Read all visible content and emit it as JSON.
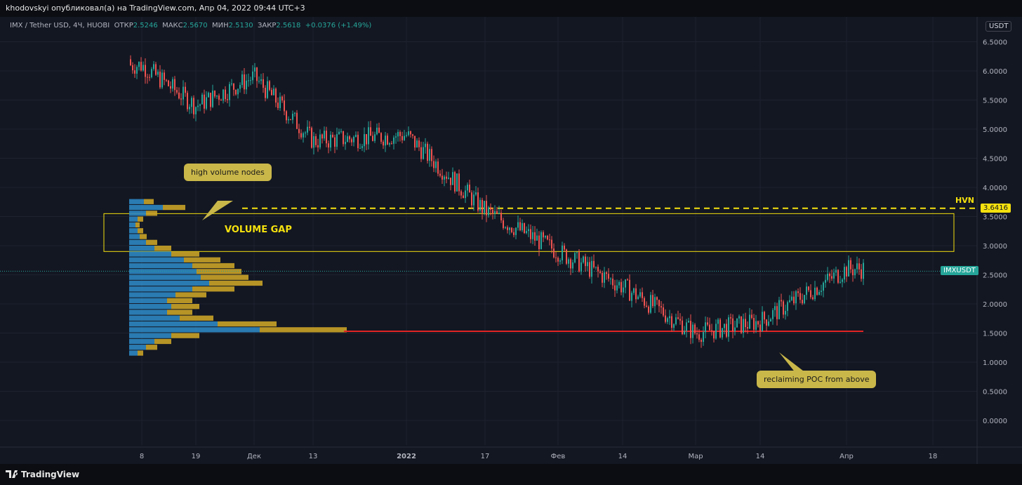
{
  "header": {
    "publish_line": "khodovskyi опубликовал(а) на TradingView.com, Апр 04, 2022 09:44 UTC+3"
  },
  "legend": {
    "symbol": "IMX / Tether USD, 4Ч, HUOBI",
    "open_label": "ОТКР",
    "open": "2.5246",
    "high_label": "МАКС",
    "high": "2.5670",
    "low_label": "МИН",
    "low": "2.5130",
    "close_label": "ЗАКР",
    "close": "2.5618",
    "change": "+0.0376 (+1.49%)"
  },
  "currency_button": "USDT",
  "footer": {
    "brand": "TradingView"
  },
  "colors": {
    "up": "#26a69a",
    "down": "#ef5350",
    "hvn": "#f5e10e",
    "poc": "#e02424",
    "vp_up": "#2e86c1",
    "vp_down": "#c9a227",
    "background": "#131722"
  },
  "chart_data": {
    "type": "candlestick",
    "y_axis": {
      "min": -0.3,
      "max": 6.8,
      "ticks": [
        "0.0000",
        "0.5000",
        "1.0000",
        "1.5000",
        "2.0000",
        "2.5000",
        "3.0000",
        "3.5000",
        "4.0000",
        "4.5000",
        "5.0000",
        "5.5000",
        "6.0000",
        "6.5000"
      ]
    },
    "x_axis": {
      "ticks": [
        "8",
        "19",
        "Дек",
        "13",
        "2022",
        "17",
        "Фев",
        "14",
        "Мар",
        "14",
        "Апр",
        "18"
      ]
    },
    "price_path": [
      [
        "8",
        6.1
      ],
      [
        "19",
        5.4
      ],
      [
        "Дек",
        5.9
      ],
      [
        "13",
        4.8
      ],
      [
        "2022",
        4.9
      ],
      [
        "17",
        3.6
      ],
      [
        "Фев",
        2.9
      ],
      [
        "14",
        2.3
      ],
      [
        "Мар",
        1.5
      ],
      [
        "14",
        1.7
      ],
      [
        "Апр",
        2.6
      ]
    ],
    "annotations": {
      "hvn_level": 3.6416,
      "hvn_label": "HVN",
      "hvn_price_label": "3.6416",
      "volume_gap": [
        2.9,
        3.55
      ],
      "volume_gap_label": "VOLUME GAP",
      "poc_level": 1.53,
      "current_price": 2.5618,
      "current_symbol": "IMXUSDT",
      "callout_hvn": "high volume nodes",
      "callout_poc": "reclaiming POC from above"
    },
    "volume_profile": [
      [
        3.75,
        35
      ],
      [
        3.65,
        80
      ],
      [
        3.55,
        40
      ],
      [
        3.45,
        20
      ],
      [
        3.35,
        15
      ],
      [
        3.25,
        20
      ],
      [
        3.15,
        25
      ],
      [
        3.05,
        40
      ],
      [
        2.95,
        60
      ],
      [
        2.85,
        100
      ],
      [
        2.75,
        130
      ],
      [
        2.65,
        150
      ],
      [
        2.55,
        160
      ],
      [
        2.45,
        170
      ],
      [
        2.35,
        190
      ],
      [
        2.25,
        150
      ],
      [
        2.15,
        110
      ],
      [
        2.05,
        90
      ],
      [
        1.95,
        100
      ],
      [
        1.85,
        90
      ],
      [
        1.75,
        120
      ],
      [
        1.65,
        210
      ],
      [
        1.55,
        310
      ],
      [
        1.45,
        100
      ],
      [
        1.35,
        60
      ],
      [
        1.25,
        40
      ],
      [
        1.15,
        20
      ]
    ]
  }
}
